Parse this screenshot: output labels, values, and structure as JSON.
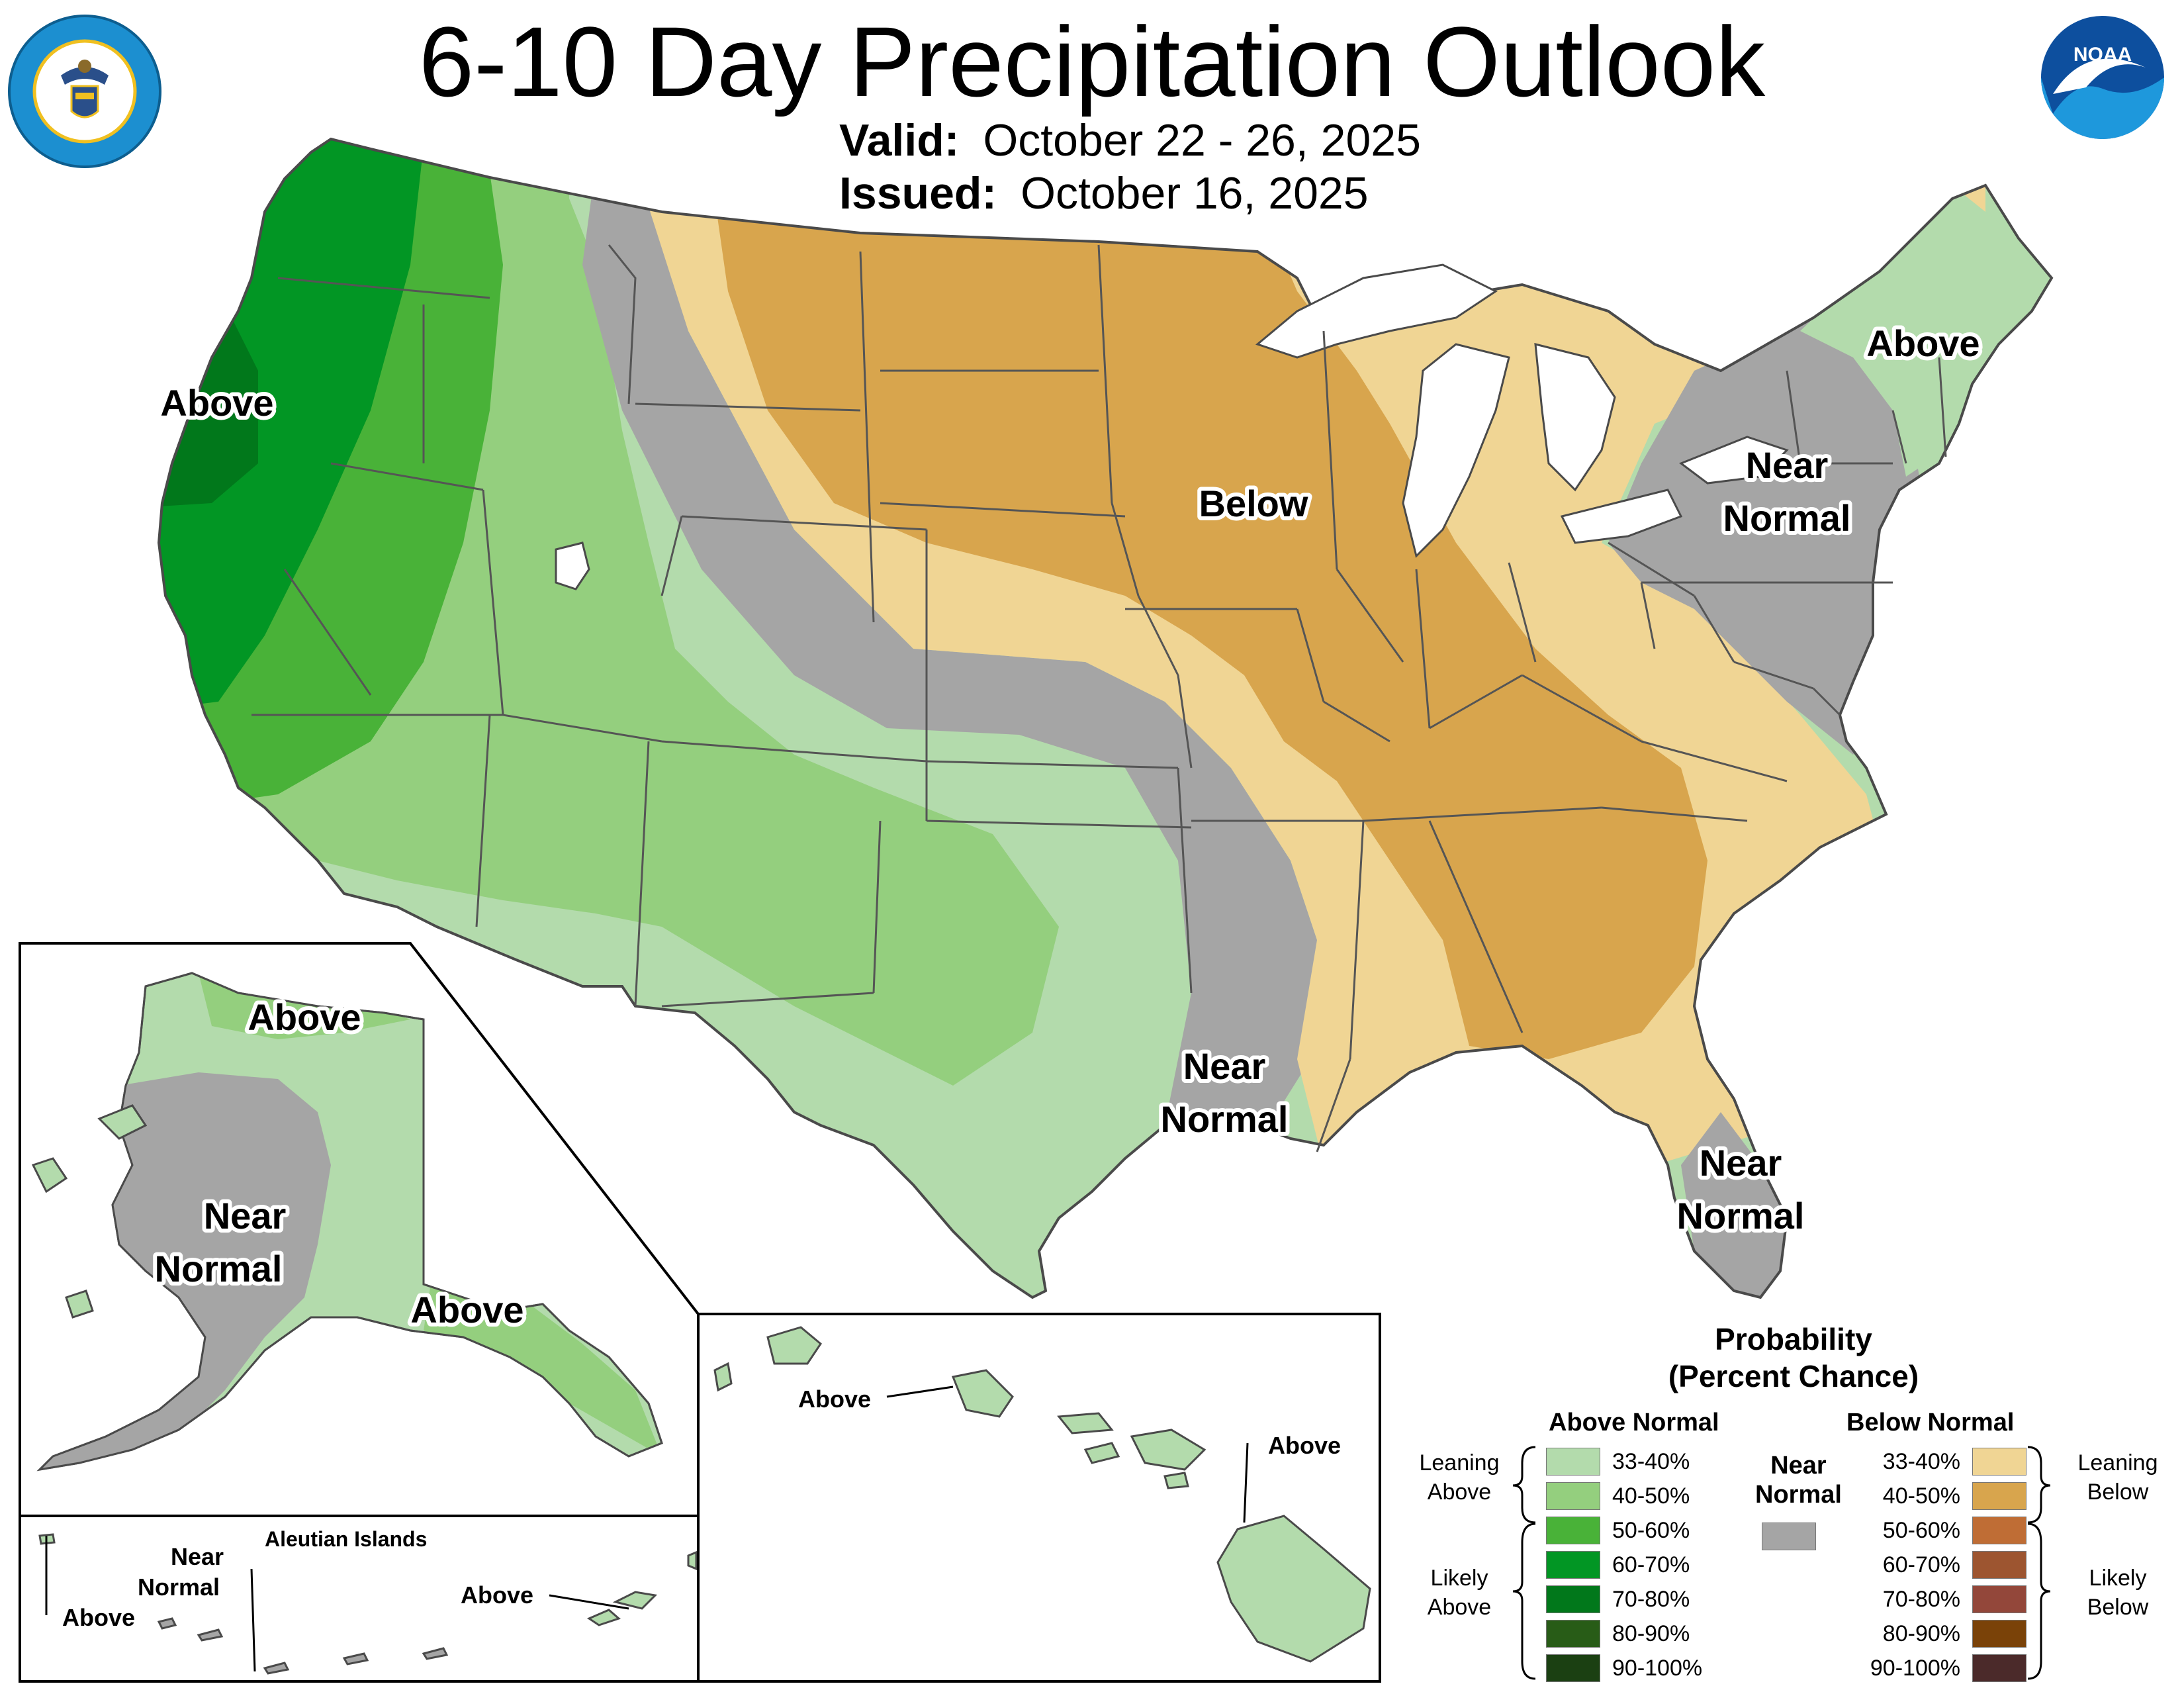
{
  "title": "6-10 Day Precipitation Outlook",
  "valid_label": "Valid:",
  "valid_value": "October 22 - 26, 2025",
  "issued_label": "Issued:",
  "issued_value": "October 16, 2025",
  "logos": {
    "left": {
      "name": "department-of-commerce-seal",
      "text": "DEPARTMENT OF COMMERCE · UNITED STATES OF AMERICA"
    },
    "right": {
      "name": "noaa-logo",
      "text": "NOAA"
    }
  },
  "map_labels": {
    "conus_above_west": "Above",
    "conus_below": "Below",
    "conus_above_ne": "Above",
    "conus_near_normal_ne_1": "Near",
    "conus_near_normal_ne_2": "Normal",
    "conus_near_normal_south_1": "Near",
    "conus_near_normal_south_2": "Normal",
    "conus_near_normal_fl_1": "Near",
    "conus_near_normal_fl_2": "Normal",
    "ak_above_north": "Above",
    "ak_near_normal_1": "Near",
    "ak_near_normal_2": "Normal",
    "ak_above_south": "Above",
    "aleutian_title": "Aleutian Islands",
    "aleutian_near_1": "Near",
    "aleutian_near_2": "Normal",
    "aleutian_above_w": "Above",
    "aleutian_above_e": "Above",
    "hi_above_1": "Above",
    "hi_above_2": "Above"
  },
  "legend": {
    "title_1": "Probability",
    "title_2": "(Percent Chance)",
    "above_header": "Above Normal",
    "below_header": "Below Normal",
    "near_header_1": "Near",
    "near_header_2": "Normal",
    "near_color": "#a5a5a5",
    "above": [
      {
        "range": "33-40%",
        "color": "#b3dbac"
      },
      {
        "range": "40-50%",
        "color": "#94cf7e"
      },
      {
        "range": "50-60%",
        "color": "#49b238"
      },
      {
        "range": "60-70%",
        "color": "#029624"
      },
      {
        "range": "70-80%",
        "color": "#01781b"
      },
      {
        "range": "80-90%",
        "color": "#285c17"
      },
      {
        "range": "90-100%",
        "color": "#1b4012"
      }
    ],
    "below": [
      {
        "range": "33-40%",
        "color": "#f0d594"
      },
      {
        "range": "40-50%",
        "color": "#d8a54d"
      },
      {
        "range": "50-60%",
        "color": "#bf6d35"
      },
      {
        "range": "60-70%",
        "color": "#9d5530"
      },
      {
        "range": "70-80%",
        "color": "#93473a"
      },
      {
        "range": "80-90%",
        "color": "#7a4208"
      },
      {
        "range": "90-100%",
        "color": "#4b2a2a"
      }
    ],
    "leaning_above_1": "Leaning",
    "leaning_above_2": "Above",
    "likely_above_1": "Likely",
    "likely_above_2": "Above",
    "leaning_below_1": "Leaning",
    "leaning_below_2": "Below",
    "likely_below_1": "Likely",
    "likely_below_2": "Below"
  }
}
